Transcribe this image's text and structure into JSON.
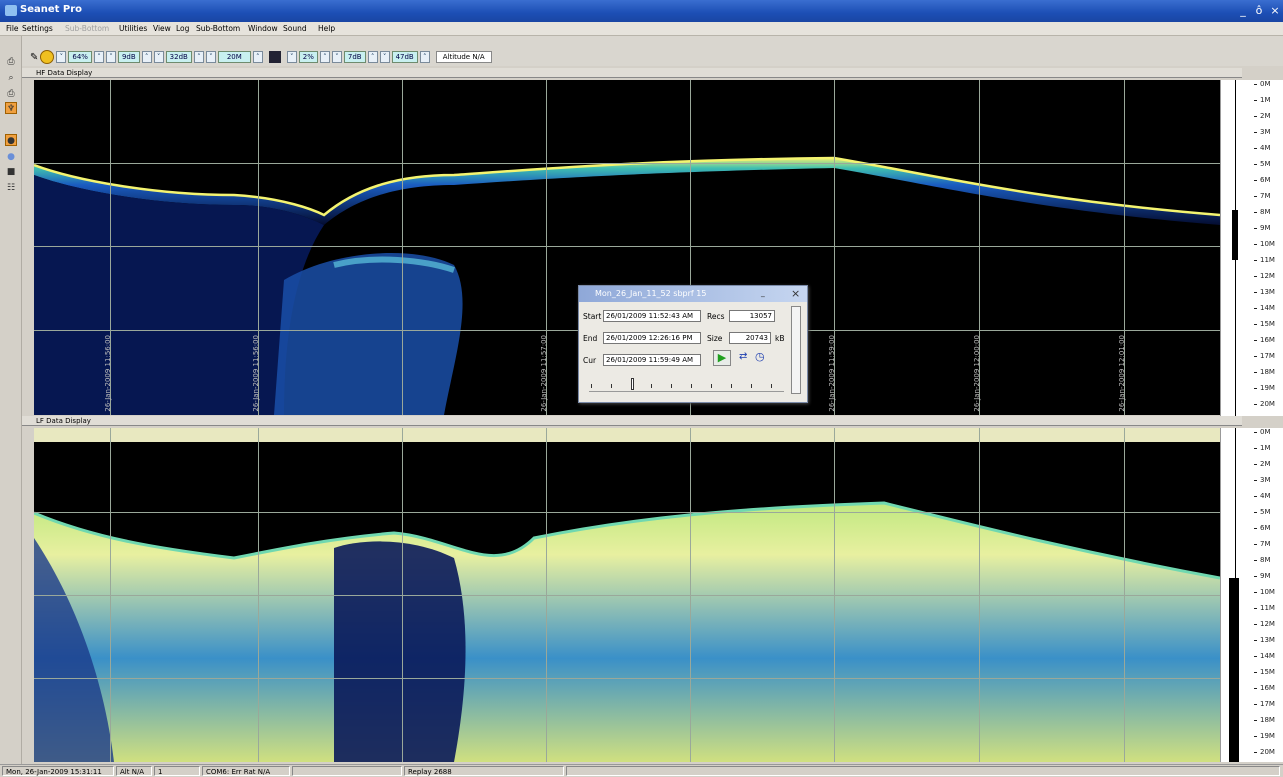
{
  "window": {
    "title": "Seanet Pro",
    "minimize": "_",
    "restore": "ô",
    "close": "×"
  },
  "menu": [
    "File",
    "Settings",
    "Sub-Bottom",
    "Utilities",
    "View",
    "Log",
    "Sub-Bottom",
    "Window",
    "Sound",
    "Help"
  ],
  "menu_disabled_index": 2,
  "toolbar": {
    "hf": {
      "gain": "64%",
      "contrast": "9dB",
      "range_db": "32dB",
      "range": "20M"
    },
    "lf": {
      "gain": "2%",
      "contrast": "7dB",
      "range_db": "47dB"
    },
    "altitude": "Altitude N/A"
  },
  "panels": {
    "hf_title": "HF Data Display",
    "lf_title": "LF Data Display"
  },
  "timestamps": [
    "26-Jan-2009 11:56:00",
    "26-Jan-2009 11:57:00",
    "26-Jan-2009 11:58:00",
    "26-Jan-2009 11:59:00",
    "26-Jan-2009 12:00:00",
    "26-Jan-2009 12:01:00"
  ],
  "depth_scale": [
    "0M",
    "1M",
    "2M",
    "3M",
    "4M",
    "5M",
    "6M",
    "7M",
    "8M",
    "9M",
    "10M",
    "11M",
    "12M",
    "13M",
    "14M",
    "15M",
    "16M",
    "17M",
    "18M",
    "19M",
    "20M"
  ],
  "dialog": {
    "title": "Mon_26_Jan_11_52 sbprf 15",
    "start_label": "Start",
    "start_value": "26/01/2009 11:52:43 AM",
    "end_label": "End",
    "end_value": "26/01/2009 12:26:16 PM",
    "cur_label": "Cur",
    "cur_value": "26/01/2009 11:59:49 AM",
    "recs_label": "Recs",
    "recs_value": "13057",
    "size_label": "Size",
    "size_value": "20743",
    "size_unit": "kB",
    "close": "×",
    "minimize": "_",
    "playback_fraction": 0.22
  },
  "status": {
    "datetime": "Mon, 26-Jan-2009 15:31:11",
    "alt": "Alt N/A",
    "num": "1",
    "com": "COM6: Err Rat N/A",
    "replay": "Replay 2688"
  },
  "colors": {
    "title_bar": "#1c4eb4",
    "sonar_low": "#0a1a6a",
    "sonar_mid": "#1e8cc8",
    "sonar_high": "#f0f070"
  }
}
